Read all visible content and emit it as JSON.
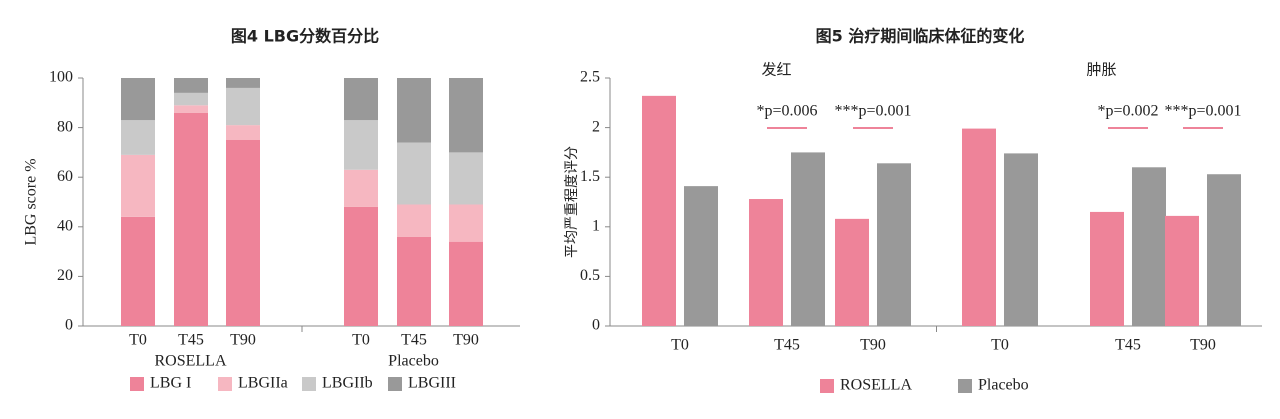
{
  "chart_data": [
    {
      "type": "stacked_bar",
      "title": "图4 LBG分数百分比",
      "y_label": "LBG score %",
      "groups": [
        {
          "name": "ROSELLA",
          "categories": [
            "T0",
            "T45",
            "T90"
          ]
        },
        {
          "name": "Placebo",
          "categories": [
            "T0",
            "T45",
            "T90"
          ]
        }
      ],
      "series": [
        {
          "name": "LBG I",
          "color": "#ee8399",
          "values": [
            44,
            86,
            75,
            48,
            36,
            34
          ]
        },
        {
          "name": "LBGIIa",
          "color": "#f6b7c1",
          "values": [
            25,
            3,
            6,
            15,
            13,
            15
          ]
        },
        {
          "name": "LBGIIb",
          "color": "#c9c9c9",
          "values": [
            14,
            5,
            15,
            20,
            25,
            21
          ]
        },
        {
          "name": "LBGIII",
          "color": "#999999",
          "values": [
            17,
            6,
            4,
            17,
            26,
            30
          ]
        }
      ],
      "ylim": [
        0,
        100
      ],
      "yticks": [
        0,
        20,
        40,
        60,
        80,
        100
      ]
    },
    {
      "type": "grouped_bar",
      "title": "图5 治疗期间临床体征的变化",
      "y_label": "平均严重程度评分",
      "groups": [
        {
          "name": "发红",
          "categories": [
            "T0",
            "T45",
            "T90"
          ]
        },
        {
          "name": "肿胀",
          "categories": [
            "T0",
            "T45",
            "T90"
          ]
        }
      ],
      "annotations": [
        null,
        "*p=0.006",
        "***p=0.001",
        null,
        "*p=0.002",
        "***p=0.001"
      ],
      "series": [
        {
          "name": "ROSELLA",
          "color": "#ee8399",
          "values": [
            2.32,
            1.28,
            1.08,
            1.99,
            1.15,
            1.11
          ]
        },
        {
          "name": "Placebo",
          "color": "#999999",
          "values": [
            1.41,
            1.75,
            1.64,
            1.74,
            1.6,
            1.53
          ]
        }
      ],
      "ylim": [
        0,
        2.5
      ],
      "yticks": [
        0,
        0.5,
        1,
        1.5,
        2,
        2.5
      ]
    }
  ]
}
